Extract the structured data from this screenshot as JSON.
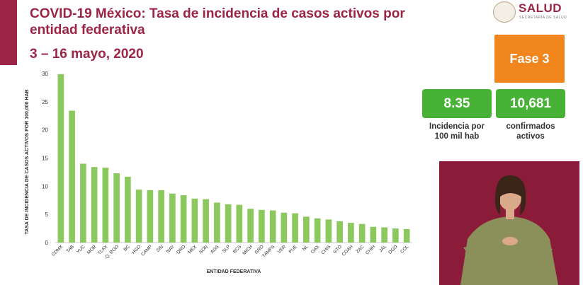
{
  "header": {
    "title": "COVID-19 México: Tasa de incidencia de casos activos por entidad federativa",
    "date_range": "3 – 16 mayo, 2020"
  },
  "logo": {
    "name": "SALUD",
    "subtitle": "SECRETARÍA DE SALUD"
  },
  "phase": {
    "label": "Fase 3"
  },
  "stats": [
    {
      "value": "8.35",
      "label": "Incidencia por 100 mil hab"
    },
    {
      "value": "10,681",
      "label": "confirmados activos"
    }
  ],
  "colors": {
    "brand": "#9c2447",
    "bar": "#8cc85e",
    "phase": "#f2861e",
    "stat": "#47b236",
    "video_bg": "#8a1c3a"
  },
  "chart_data": {
    "type": "bar",
    "title": "",
    "xlabel": "ENTIDAD FEDERATIVA",
    "ylabel": "TASA DE INCIDENCIA DE CASOS ACTIVOS POR 100,000 HAB",
    "ylim": [
      0,
      30
    ],
    "yticks": [
      0,
      5,
      10,
      15,
      20,
      25,
      30
    ],
    "grid": false,
    "categories": [
      "CDMX",
      "TAB",
      "YUC",
      "MOR",
      "TLAX",
      "Q. ROO",
      "BC",
      "HGO",
      "CAMP",
      "SIN",
      "NAY",
      "QRO",
      "MEX",
      "SON",
      "AGS",
      "SLP",
      "BCS",
      "MICH",
      "GRO",
      "TAMPS",
      "VER",
      "PUE",
      "NL",
      "OAX",
      "CHIS",
      "GTO",
      "COAH",
      "ZAC",
      "CHIH",
      "JAL",
      "DGO",
      "COL"
    ],
    "values": [
      29.9,
      23.4,
      14.0,
      13.4,
      13.3,
      12.3,
      11.7,
      9.4,
      9.3,
      9.3,
      8.7,
      8.4,
      7.8,
      7.7,
      7.1,
      6.8,
      6.7,
      6.0,
      5.8,
      5.7,
      5.3,
      5.2,
      4.6,
      4.3,
      4.1,
      3.8,
      3.5,
      3.3,
      2.8,
      2.7,
      2.5,
      2.4
    ]
  }
}
